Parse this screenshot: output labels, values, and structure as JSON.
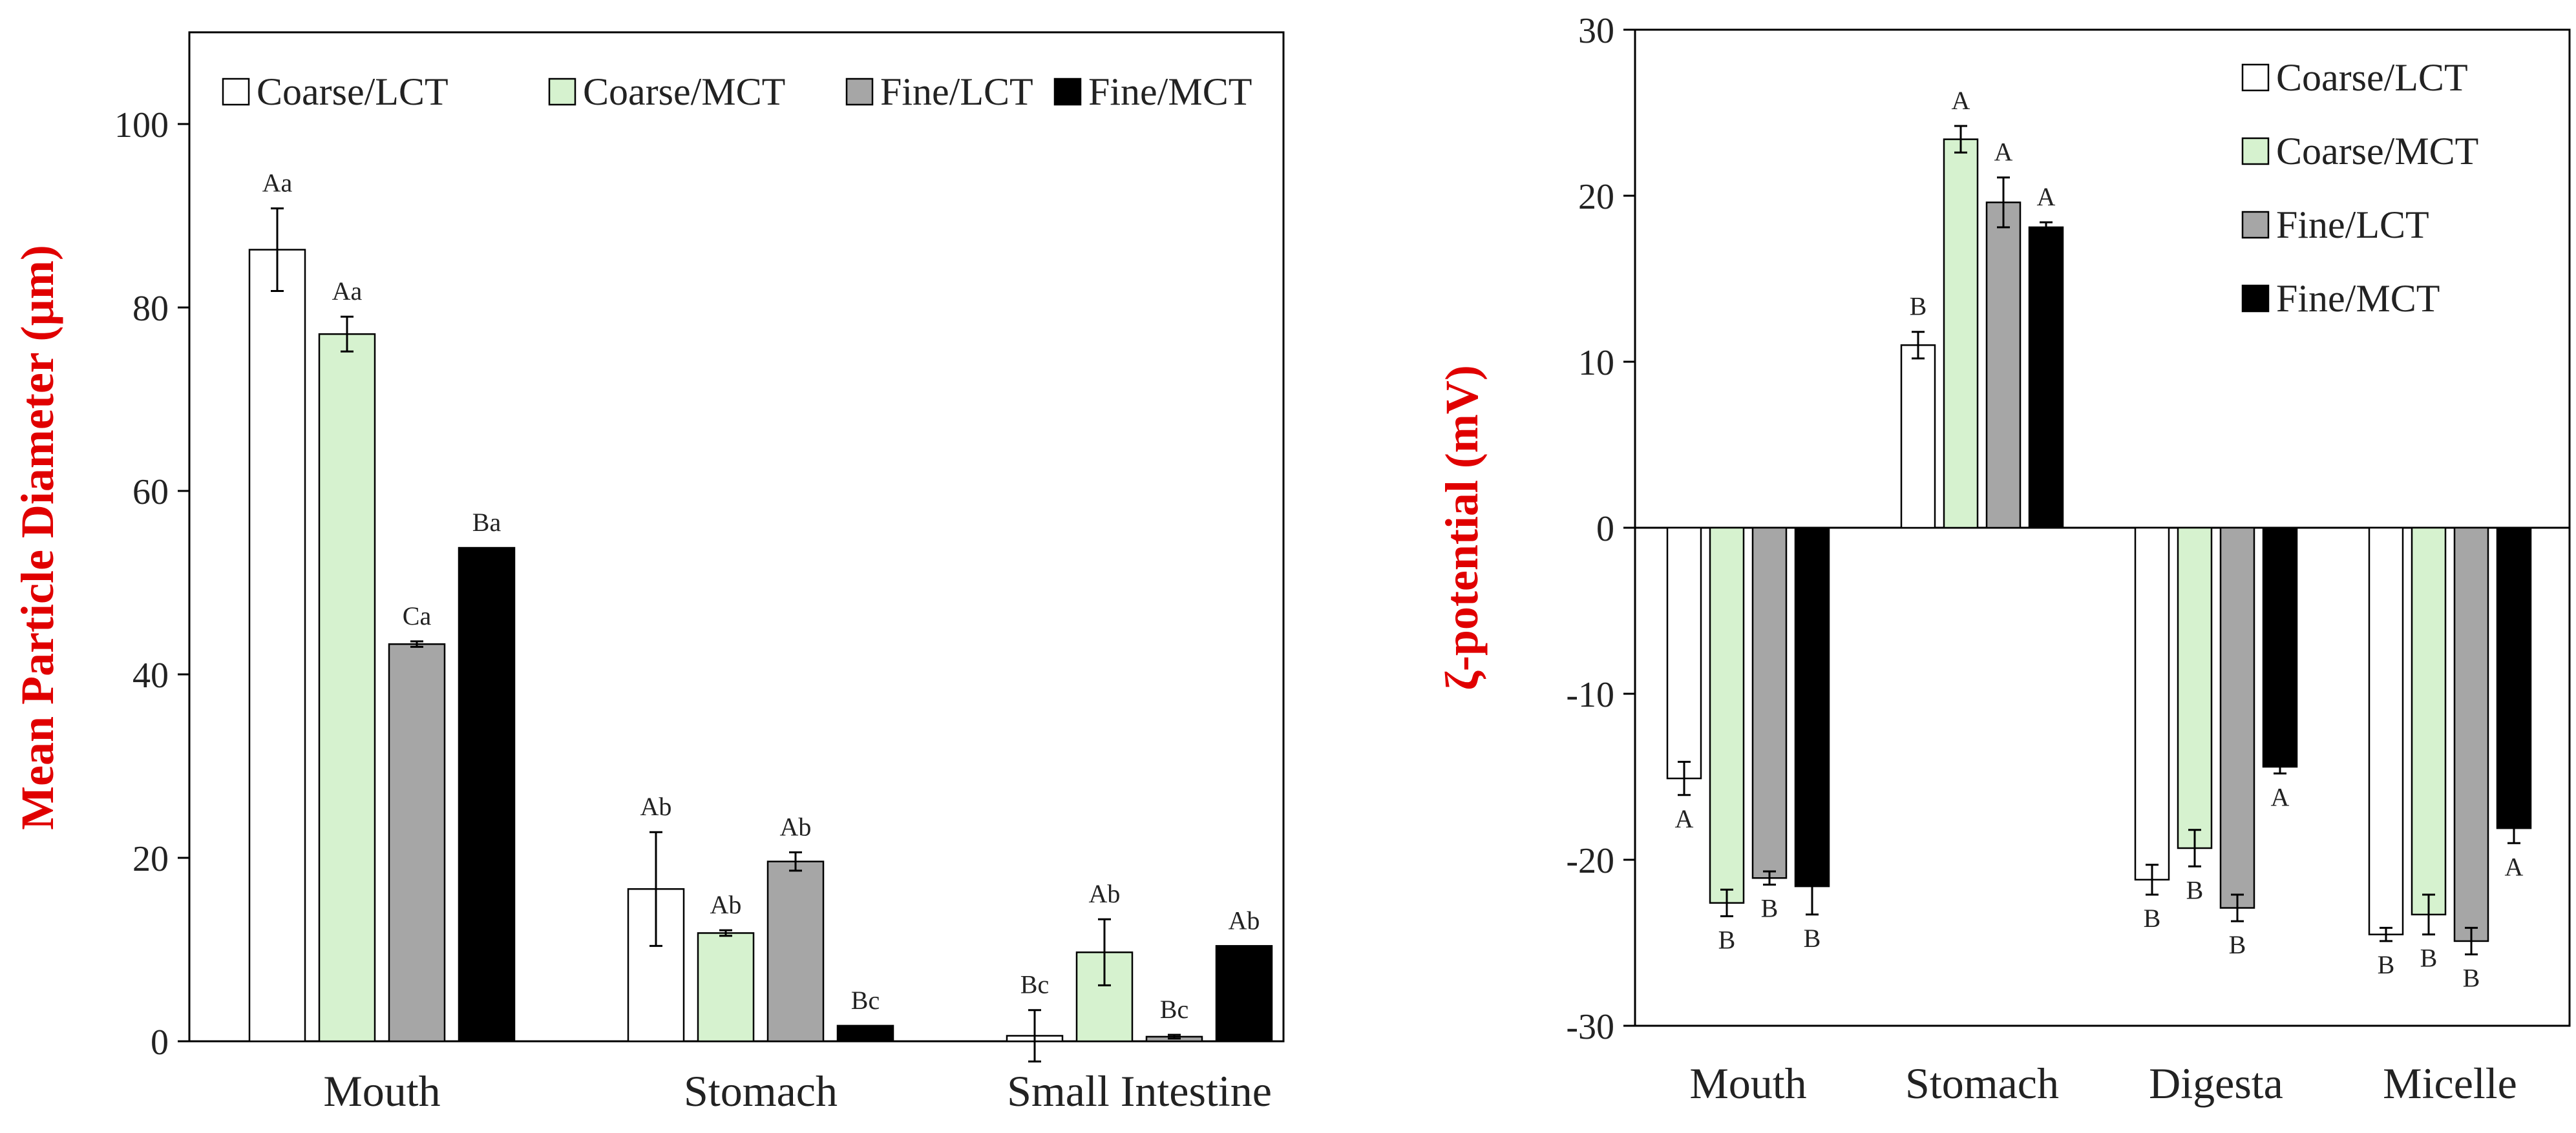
{
  "colors": {
    "coarse_lct": "#ffffff",
    "coarse_mct": "#d6f2cf",
    "fine_lct": "#a6a6a6",
    "fine_mct": "#000000",
    "axis_title": "#e00000"
  },
  "chart_data": [
    {
      "type": "bar",
      "title": "",
      "xlabel": "",
      "ylabel": "Mean Particle Diameter (µm)",
      "ylim": [
        0,
        110
      ],
      "yticks": [
        0,
        20,
        40,
        60,
        80,
        100
      ],
      "legend_position": "top",
      "categories": [
        "Mouth",
        "Stomach",
        "Small Intestine"
      ],
      "series": [
        {
          "name": "Coarse/LCT",
          "color_key": "coarse_lct",
          "values": [
            86.3,
            16.6,
            0.6
          ],
          "errors": [
            4.5,
            6.2,
            2.8
          ],
          "labels": [
            "Aa",
            "Ab",
            "Bc"
          ]
        },
        {
          "name": "Coarse/MCT",
          "color_key": "coarse_mct",
          "values": [
            77.1,
            11.8,
            9.7
          ],
          "errors": [
            1.9,
            0.3,
            3.6
          ],
          "labels": [
            "Aa",
            "Ab",
            "Ab"
          ]
        },
        {
          "name": "Fine/LCT",
          "color_key": "fine_lct",
          "values": [
            43.3,
            19.6,
            0.5
          ],
          "errors": [
            0.3,
            1.0,
            0.2
          ],
          "labels": [
            "Ca",
            "Ab",
            "Bc"
          ]
        },
        {
          "name": "Fine/MCT",
          "color_key": "fine_mct",
          "values": [
            53.8,
            1.7,
            10.4
          ],
          "errors": [
            0,
            0,
            0
          ],
          "labels": [
            "Ba",
            "Bc",
            "Ab"
          ]
        }
      ]
    },
    {
      "type": "bar",
      "title": "",
      "xlabel": "",
      "ylabel": "ζ-potential (mV)",
      "ylim": [
        -30,
        30
      ],
      "yticks": [
        -30,
        -20,
        -10,
        0,
        10,
        20,
        30
      ],
      "legend_position": "top-right",
      "categories": [
        "Mouth",
        "Stomach",
        "Digesta",
        "Micelle"
      ],
      "series": [
        {
          "name": "Coarse/LCT",
          "color_key": "coarse_lct",
          "values": [
            -15.1,
            11.0,
            -21.2,
            -24.5
          ],
          "errors": [
            1.0,
            0.8,
            0.9,
            0.4
          ],
          "labels": [
            "A",
            "B",
            "B",
            "B"
          ]
        },
        {
          "name": "Coarse/MCT",
          "color_key": "coarse_mct",
          "values": [
            -22.6,
            23.4,
            -19.3,
            -23.3
          ],
          "errors": [
            0.8,
            0.8,
            1.1,
            1.2
          ],
          "labels": [
            "B",
            "A",
            "B",
            "B"
          ]
        },
        {
          "name": "Fine/LCT",
          "color_key": "fine_lct",
          "values": [
            -21.1,
            19.6,
            -22.9,
            -24.9
          ],
          "errors": [
            0.4,
            1.5,
            0.8,
            0.8
          ],
          "labels": [
            "B",
            "A",
            "B",
            "B"
          ]
        },
        {
          "name": "Fine/MCT",
          "color_key": "fine_mct",
          "values": [
            -21.6,
            18.1,
            -14.4,
            -18.1
          ],
          "errors": [
            1.7,
            0.3,
            0.4,
            0.9
          ],
          "labels": [
            "B",
            "A",
            "A",
            "A"
          ]
        }
      ]
    }
  ]
}
